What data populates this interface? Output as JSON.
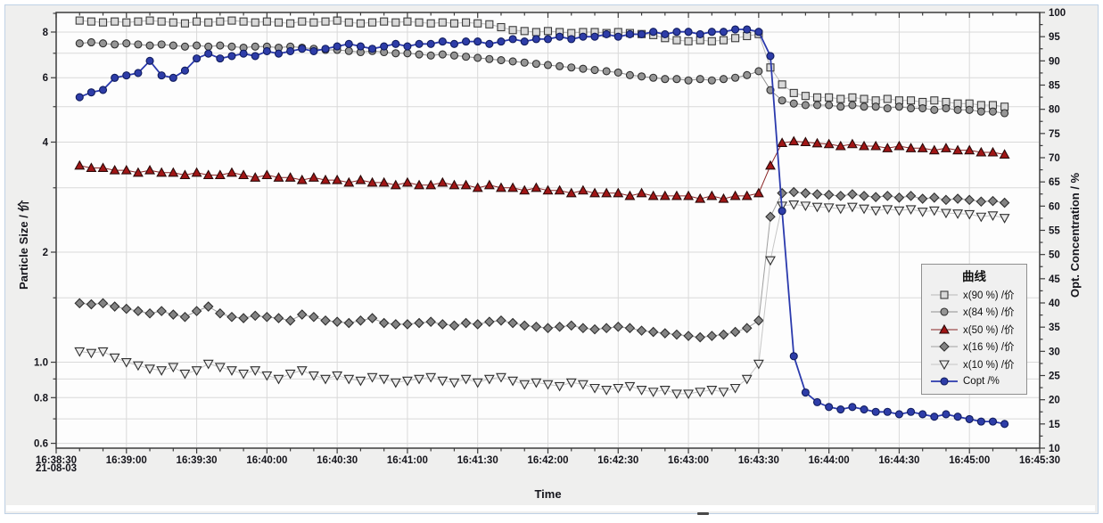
{
  "colors": {
    "window_border": "#bfd1e5",
    "figure_bg": "#efefee",
    "plot_bg": "#fdfdfd",
    "grid": "#d9d9d9",
    "axis": "#3c3c3c",
    "text": "#15151c",
    "legend_bg": "#f0f0f0",
    "legend_border": "#8f8f8f",
    "copt_blue": "#2e3da8",
    "x50_red": "#a11616"
  },
  "chart_data": {
    "type": "line",
    "title": "",
    "xlabel": "Time",
    "ylabel_left": "Particle Size / 价",
    "ylabel_right": "Opt. Concentration / %",
    "legend_title": "曲线",
    "legend_position": "right-middle",
    "grid": true,
    "x_axis": {
      "date_label": "21-08-03",
      "tick_labels": [
        "16:38:30",
        "16:39:00",
        "16:39:30",
        "16:40:00",
        "16:40:30",
        "16:41:00",
        "16:41:30",
        "16:42:00",
        "16:42:30",
        "16:43:00",
        "16:43:30",
        "16:44:00",
        "16:44:30",
        "16:45:00",
        "16:45:30"
      ],
      "tick_interval_seconds": 30,
      "minor_tick_seconds": 10,
      "range_seconds": [
        0,
        420
      ]
    },
    "y_left": {
      "scale": "log",
      "range": [
        0.58,
        9.05
      ],
      "tick_labels": [
        "8",
        "6",
        "4",
        "2",
        "1.0",
        "0.8",
        "0.6"
      ],
      "tick_values": [
        8,
        6,
        4,
        2,
        1,
        0.8,
        0.6
      ],
      "gridline_values": [
        8,
        7,
        6,
        5,
        4,
        3,
        2,
        1.5,
        1,
        0.9,
        0.8,
        0.7,
        0.6
      ]
    },
    "y_right": {
      "scale": "linear",
      "range": [
        10,
        100
      ],
      "tick_step": 5,
      "minor_step": 2.5,
      "tick_labels": [
        "100",
        "95",
        "90",
        "85",
        "80",
        "75",
        "70",
        "65",
        "60",
        "55",
        "50",
        "45",
        "40",
        "35",
        "30",
        "25",
        "20",
        "15",
        "10"
      ]
    },
    "t_reference": "16:38:30",
    "t_seconds": [
      10,
      15,
      20,
      25,
      30,
      35,
      40,
      45,
      50,
      55,
      60,
      65,
      70,
      75,
      80,
      85,
      90,
      95,
      100,
      105,
      110,
      115,
      120,
      125,
      130,
      135,
      140,
      145,
      150,
      155,
      160,
      165,
      170,
      175,
      180,
      185,
      190,
      195,
      200,
      205,
      210,
      215,
      220,
      225,
      230,
      235,
      240,
      245,
      250,
      255,
      260,
      265,
      270,
      275,
      280,
      285,
      290,
      295,
      300,
      305,
      310,
      315,
      320,
      325,
      330,
      335,
      340,
      345,
      350,
      355,
      360,
      365,
      370,
      375,
      380,
      385,
      390,
      395,
      400,
      405
    ],
    "series": [
      {
        "name": "x(90 %) /价",
        "axis": "left",
        "marker": "square",
        "marker_fill": "#d9d9d9",
        "marker_edge": "#3a3a3a",
        "line_color": "#b9b9b9",
        "values": [
          8.6,
          8.55,
          8.5,
          8.55,
          8.5,
          8.55,
          8.6,
          8.55,
          8.5,
          8.45,
          8.55,
          8.5,
          8.55,
          8.6,
          8.55,
          8.5,
          8.55,
          8.5,
          8.45,
          8.55,
          8.5,
          8.55,
          8.6,
          8.5,
          8.45,
          8.5,
          8.55,
          8.5,
          8.55,
          8.5,
          8.45,
          8.5,
          8.45,
          8.5,
          8.45,
          8.4,
          8.25,
          8.1,
          8.05,
          8.0,
          8.05,
          8.0,
          7.95,
          8.0,
          8.0,
          7.95,
          8.0,
          7.95,
          7.9,
          7.85,
          7.7,
          7.6,
          7.55,
          7.6,
          7.55,
          7.6,
          7.7,
          7.8,
          7.9,
          6.4,
          5.75,
          5.45,
          5.35,
          5.3,
          5.3,
          5.25,
          5.3,
          5.25,
          5.2,
          5.25,
          5.2,
          5.2,
          5.15,
          5.2,
          5.15,
          5.1,
          5.1,
          5.05,
          5.05,
          5.0
        ]
      },
      {
        "name": "x(84 %) /价",
        "axis": "left",
        "marker": "circle",
        "marker_fill": "#969696",
        "marker_edge": "#2f2f2f",
        "line_color": "#8f8f8f",
        "values": [
          7.45,
          7.5,
          7.45,
          7.4,
          7.45,
          7.4,
          7.35,
          7.4,
          7.35,
          7.3,
          7.35,
          7.3,
          7.35,
          7.3,
          7.25,
          7.3,
          7.3,
          7.25,
          7.3,
          7.25,
          7.2,
          7.15,
          7.15,
          7.1,
          7.05,
          7.1,
          7.05,
          7.0,
          7.0,
          6.95,
          6.9,
          6.95,
          6.9,
          6.85,
          6.8,
          6.75,
          6.7,
          6.65,
          6.6,
          6.55,
          6.5,
          6.45,
          6.4,
          6.35,
          6.3,
          6.25,
          6.2,
          6.1,
          6.05,
          6.0,
          5.95,
          5.95,
          5.9,
          5.95,
          5.9,
          5.95,
          6.0,
          6.1,
          6.25,
          5.55,
          5.2,
          5.1,
          5.05,
          5.05,
          5.05,
          5.0,
          5.05,
          5.0,
          5.0,
          4.95,
          5.0,
          4.95,
          4.95,
          4.9,
          4.95,
          4.9,
          4.9,
          4.85,
          4.85,
          4.8
        ]
      },
      {
        "name": "x(50 %) /价",
        "axis": "left",
        "marker": "triangle-up",
        "marker_fill": "#a11616",
        "marker_edge": "#2a0a0a",
        "line_color": "#8a2525",
        "values": [
          3.45,
          3.4,
          3.4,
          3.35,
          3.35,
          3.3,
          3.35,
          3.3,
          3.3,
          3.25,
          3.3,
          3.25,
          3.25,
          3.3,
          3.25,
          3.2,
          3.25,
          3.2,
          3.2,
          3.15,
          3.2,
          3.15,
          3.15,
          3.1,
          3.15,
          3.1,
          3.1,
          3.05,
          3.1,
          3.05,
          3.05,
          3.1,
          3.05,
          3.05,
          3.0,
          3.05,
          3.0,
          3.0,
          2.95,
          3.0,
          2.95,
          2.95,
          2.9,
          2.95,
          2.9,
          2.9,
          2.9,
          2.85,
          2.9,
          2.85,
          2.85,
          2.85,
          2.85,
          2.8,
          2.85,
          2.8,
          2.85,
          2.85,
          2.9,
          3.45,
          3.98,
          4.02,
          4.0,
          3.97,
          3.95,
          3.9,
          3.95,
          3.9,
          3.9,
          3.85,
          3.9,
          3.85,
          3.85,
          3.8,
          3.85,
          3.8,
          3.8,
          3.75,
          3.75,
          3.7
        ]
      },
      {
        "name": "x(16 %) /价",
        "axis": "left",
        "marker": "diamond",
        "marker_fill": "#848484",
        "marker_edge": "#2f2f2f",
        "line_color": "#9f9f9f",
        "values": [
          1.45,
          1.44,
          1.45,
          1.42,
          1.4,
          1.38,
          1.36,
          1.38,
          1.35,
          1.33,
          1.38,
          1.42,
          1.36,
          1.33,
          1.32,
          1.34,
          1.33,
          1.32,
          1.3,
          1.35,
          1.33,
          1.3,
          1.29,
          1.28,
          1.3,
          1.32,
          1.28,
          1.27,
          1.27,
          1.28,
          1.29,
          1.27,
          1.26,
          1.28,
          1.27,
          1.29,
          1.3,
          1.28,
          1.26,
          1.25,
          1.24,
          1.25,
          1.26,
          1.24,
          1.23,
          1.24,
          1.25,
          1.24,
          1.22,
          1.21,
          1.2,
          1.19,
          1.18,
          1.17,
          1.18,
          1.19,
          1.21,
          1.24,
          1.3,
          2.5,
          2.9,
          2.92,
          2.9,
          2.88,
          2.87,
          2.85,
          2.88,
          2.85,
          2.83,
          2.85,
          2.82,
          2.85,
          2.8,
          2.82,
          2.78,
          2.8,
          2.78,
          2.75,
          2.76,
          2.73
        ]
      },
      {
        "name": "x(10 %) /价",
        "axis": "left",
        "marker": "triangle-down",
        "marker_fill": "#ebebeb",
        "marker_edge": "#2f2f2f",
        "line_color": "#c6c6c6",
        "values": [
          1.07,
          1.06,
          1.07,
          1.03,
          1.0,
          0.98,
          0.96,
          0.95,
          0.97,
          0.93,
          0.95,
          0.99,
          0.97,
          0.95,
          0.93,
          0.95,
          0.92,
          0.9,
          0.93,
          0.95,
          0.92,
          0.9,
          0.92,
          0.9,
          0.89,
          0.91,
          0.9,
          0.88,
          0.89,
          0.9,
          0.91,
          0.89,
          0.88,
          0.9,
          0.88,
          0.9,
          0.91,
          0.89,
          0.87,
          0.88,
          0.87,
          0.86,
          0.88,
          0.87,
          0.85,
          0.84,
          0.85,
          0.86,
          0.84,
          0.83,
          0.84,
          0.82,
          0.82,
          0.83,
          0.84,
          0.83,
          0.85,
          0.9,
          0.99,
          1.9,
          2.68,
          2.7,
          2.68,
          2.66,
          2.65,
          2.63,
          2.66,
          2.63,
          2.6,
          2.62,
          2.6,
          2.62,
          2.58,
          2.6,
          2.56,
          2.55,
          2.54,
          2.5,
          2.52,
          2.48
        ]
      },
      {
        "name": "Copt /%",
        "axis": "right",
        "marker": "circle",
        "marker_fill": "#2e3da8",
        "marker_edge": "#101c5e",
        "line_color": "#2b3aad",
        "values": [
          82.5,
          83.5,
          84.0,
          86.5,
          87.0,
          87.5,
          90.0,
          87.0,
          86.5,
          88.0,
          90.5,
          91.5,
          90.5,
          91.0,
          91.5,
          91.0,
          92.0,
          91.5,
          92.0,
          92.5,
          92.0,
          92.5,
          93.0,
          93.5,
          93.0,
          92.5,
          93.0,
          93.5,
          93.0,
          93.5,
          93.5,
          94.0,
          93.5,
          94.0,
          94.0,
          93.5,
          94.0,
          94.5,
          94.0,
          94.5,
          94.5,
          95.0,
          94.5,
          95.0,
          95.0,
          95.5,
          95.0,
          95.5,
          95.5,
          96.0,
          95.5,
          96.0,
          96.0,
          95.5,
          96.0,
          96.0,
          96.5,
          96.5,
          96.0,
          91.0,
          59.0,
          29.0,
          21.5,
          19.5,
          18.5,
          18.0,
          18.5,
          18.0,
          17.5,
          17.5,
          17.0,
          17.5,
          17.0,
          16.5,
          17.0,
          16.5,
          16.0,
          15.5,
          15.5,
          15.0
        ]
      }
    ]
  }
}
